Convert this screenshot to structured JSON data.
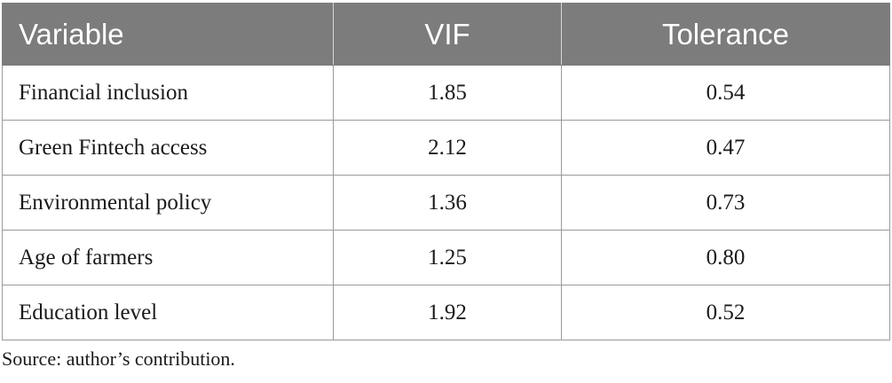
{
  "table": {
    "headers": [
      "Variable",
      "VIF",
      "Tolerance"
    ],
    "rows": [
      [
        "Financial inclusion",
        "1.85",
        "0.54"
      ],
      [
        "Green Fintech access",
        "2.12",
        "0.47"
      ],
      [
        "Environmental policy",
        "1.36",
        "0.73"
      ],
      [
        "Age of farmers",
        "1.25",
        "0.80"
      ],
      [
        "Education level",
        "1.92",
        "0.52"
      ]
    ],
    "header_bg": "#7b7c7b",
    "header_text_color": "#ffffff"
  },
  "footnote": "Source: author’s contribution."
}
